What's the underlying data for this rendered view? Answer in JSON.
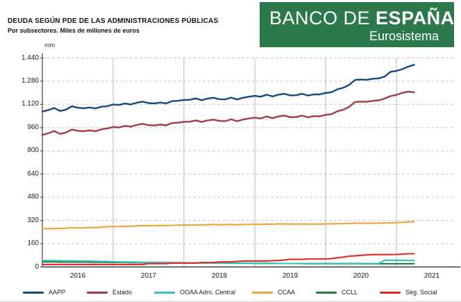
{
  "header": {
    "title": "DEUDA SEGÚN PDE DE LAS ADMINISTRACIONES PÚBLICAS",
    "subtitle": "Por subsectores. Miles de millones de euros",
    "logo": {
      "name_regular": "BANCO DE",
      "name_bold": "ESPAÑA",
      "tagline": "Eurosistema",
      "bg_color": "#2c7a4b"
    }
  },
  "chart_data": {
    "type": "line",
    "unit_label": "mm",
    "ylim": [
      0,
      1440
    ],
    "y_ticks": [
      0,
      160,
      320,
      480,
      640,
      800,
      960,
      1120,
      1280,
      1440
    ],
    "y_tick_labels": [
      "0",
      "160",
      "320",
      "480",
      "640",
      "800",
      "960",
      "1.120",
      "1.280",
      "1.440"
    ],
    "x_tick_labels": [
      "2016",
      "2017",
      "2018",
      "2019",
      "2020",
      "2021"
    ],
    "x_frequency": "monthly",
    "x_from": "2016-01",
    "x_to": "2021-04",
    "grid": {
      "horizontal": "dashed",
      "vertical_year_lines": "solid"
    },
    "legend_position": "bottom",
    "series": [
      {
        "name": "AAPP",
        "color": "#17477e",
        "values": [
          1070,
          1081,
          1095,
          1075,
          1084,
          1107,
          1097,
          1093,
          1099,
          1092,
          1104,
          1107,
          1120,
          1116,
          1126,
          1120,
          1132,
          1139,
          1129,
          1127,
          1133,
          1127,
          1143,
          1145,
          1151,
          1152,
          1161,
          1149,
          1160,
          1166,
          1156,
          1155,
          1167,
          1154,
          1166,
          1173,
          1179,
          1173,
          1187,
          1175,
          1187,
          1193,
          1182,
          1183,
          1193,
          1181,
          1189,
          1189,
          1199,
          1204,
          1224,
          1235,
          1255,
          1289,
          1291,
          1290,
          1297,
          1300,
          1312,
          1345,
          1351,
          1363,
          1380,
          1393
        ]
      },
      {
        "name": "Estado",
        "color": "#a43a48",
        "values": [
          910,
          921,
          936,
          917,
          926,
          947,
          938,
          935,
          941,
          935,
          948,
          955,
          964,
          961,
          972,
          967,
          979,
          986,
          977,
          975,
          981,
          976,
          992,
          994,
          1000,
          1001,
          1010,
          999,
          1010,
          1015,
          1006,
          1005,
          1017,
          1004,
          1016,
          1023,
          1029,
          1023,
          1037,
          1025,
          1037,
          1043,
          1032,
          1033,
          1043,
          1031,
          1039,
          1038,
          1048,
          1053,
          1073,
          1083,
          1103,
          1137,
          1139,
          1138,
          1145,
          1148,
          1160,
          1177,
          1186,
          1200,
          1208,
          1203
        ]
      },
      {
        "name": "OOAA Adm. Central",
        "color": "#2fc0ba",
        "values": [
          44,
          44,
          43,
          43,
          42,
          42,
          41,
          40,
          40,
          39,
          38,
          38,
          36,
          35,
          34,
          34,
          33,
          32,
          31,
          31,
          30,
          30,
          29,
          29,
          28,
          28,
          28,
          27,
          27,
          27,
          27,
          26,
          26,
          26,
          26,
          26,
          25,
          25,
          25,
          25,
          24,
          24,
          24,
          24,
          24,
          23,
          23,
          23,
          23,
          23,
          23,
          23,
          23,
          23,
          23,
          23,
          23,
          23,
          46,
          46,
          45,
          45,
          44,
          44
        ]
      },
      {
        "name": "CCAA",
        "color": "#f0a23c",
        "values": [
          263,
          264,
          266,
          265,
          267,
          270,
          269,
          270,
          272,
          271,
          274,
          277,
          279,
          278,
          281,
          280,
          283,
          285,
          284,
          284,
          286,
          285,
          287,
          288,
          289,
          288,
          290,
          289,
          291,
          293,
          291,
          291,
          293,
          291,
          293,
          293,
          294,
          293,
          295,
          294,
          296,
          297,
          295,
          295,
          296,
          295,
          295,
          295,
          296,
          297,
          298,
          299,
          300,
          302,
          301,
          301,
          302,
          302,
          303,
          304,
          305,
          307,
          310,
          312
        ]
      },
      {
        "name": "CCLL",
        "color": "#2d7a41",
        "values": [
          35,
          35,
          35,
          34,
          34,
          34,
          33,
          33,
          33,
          32,
          32,
          32,
          31,
          31,
          31,
          30,
          30,
          30,
          29,
          29,
          29,
          29,
          29,
          29,
          28,
          28,
          28,
          27,
          27,
          27,
          26,
          26,
          26,
          26,
          26,
          26,
          25,
          25,
          25,
          25,
          24,
          24,
          24,
          24,
          23,
          23,
          23,
          23,
          23,
          23,
          23,
          23,
          23,
          23,
          22,
          22,
          22,
          22,
          22,
          22,
          22,
          22,
          22,
          22
        ]
      },
      {
        "name": "Seg. Social",
        "color": "#df2b22",
        "values": [
          17,
          17,
          17,
          17,
          17,
          17,
          17,
          17,
          17,
          17,
          17,
          17,
          17,
          17,
          17,
          17,
          17,
          17,
          23,
          23,
          23,
          23,
          27,
          27,
          27,
          27,
          27,
          30,
          30,
          30,
          35,
          35,
          35,
          38,
          41,
          41,
          41,
          41,
          41,
          44,
          44,
          48,
          52,
          52,
          52,
          55,
          55,
          55,
          55,
          58,
          63,
          68,
          74,
          77,
          80,
          83,
          85,
          85,
          85,
          85,
          86,
          88,
          91,
          91
        ]
      }
    ]
  }
}
